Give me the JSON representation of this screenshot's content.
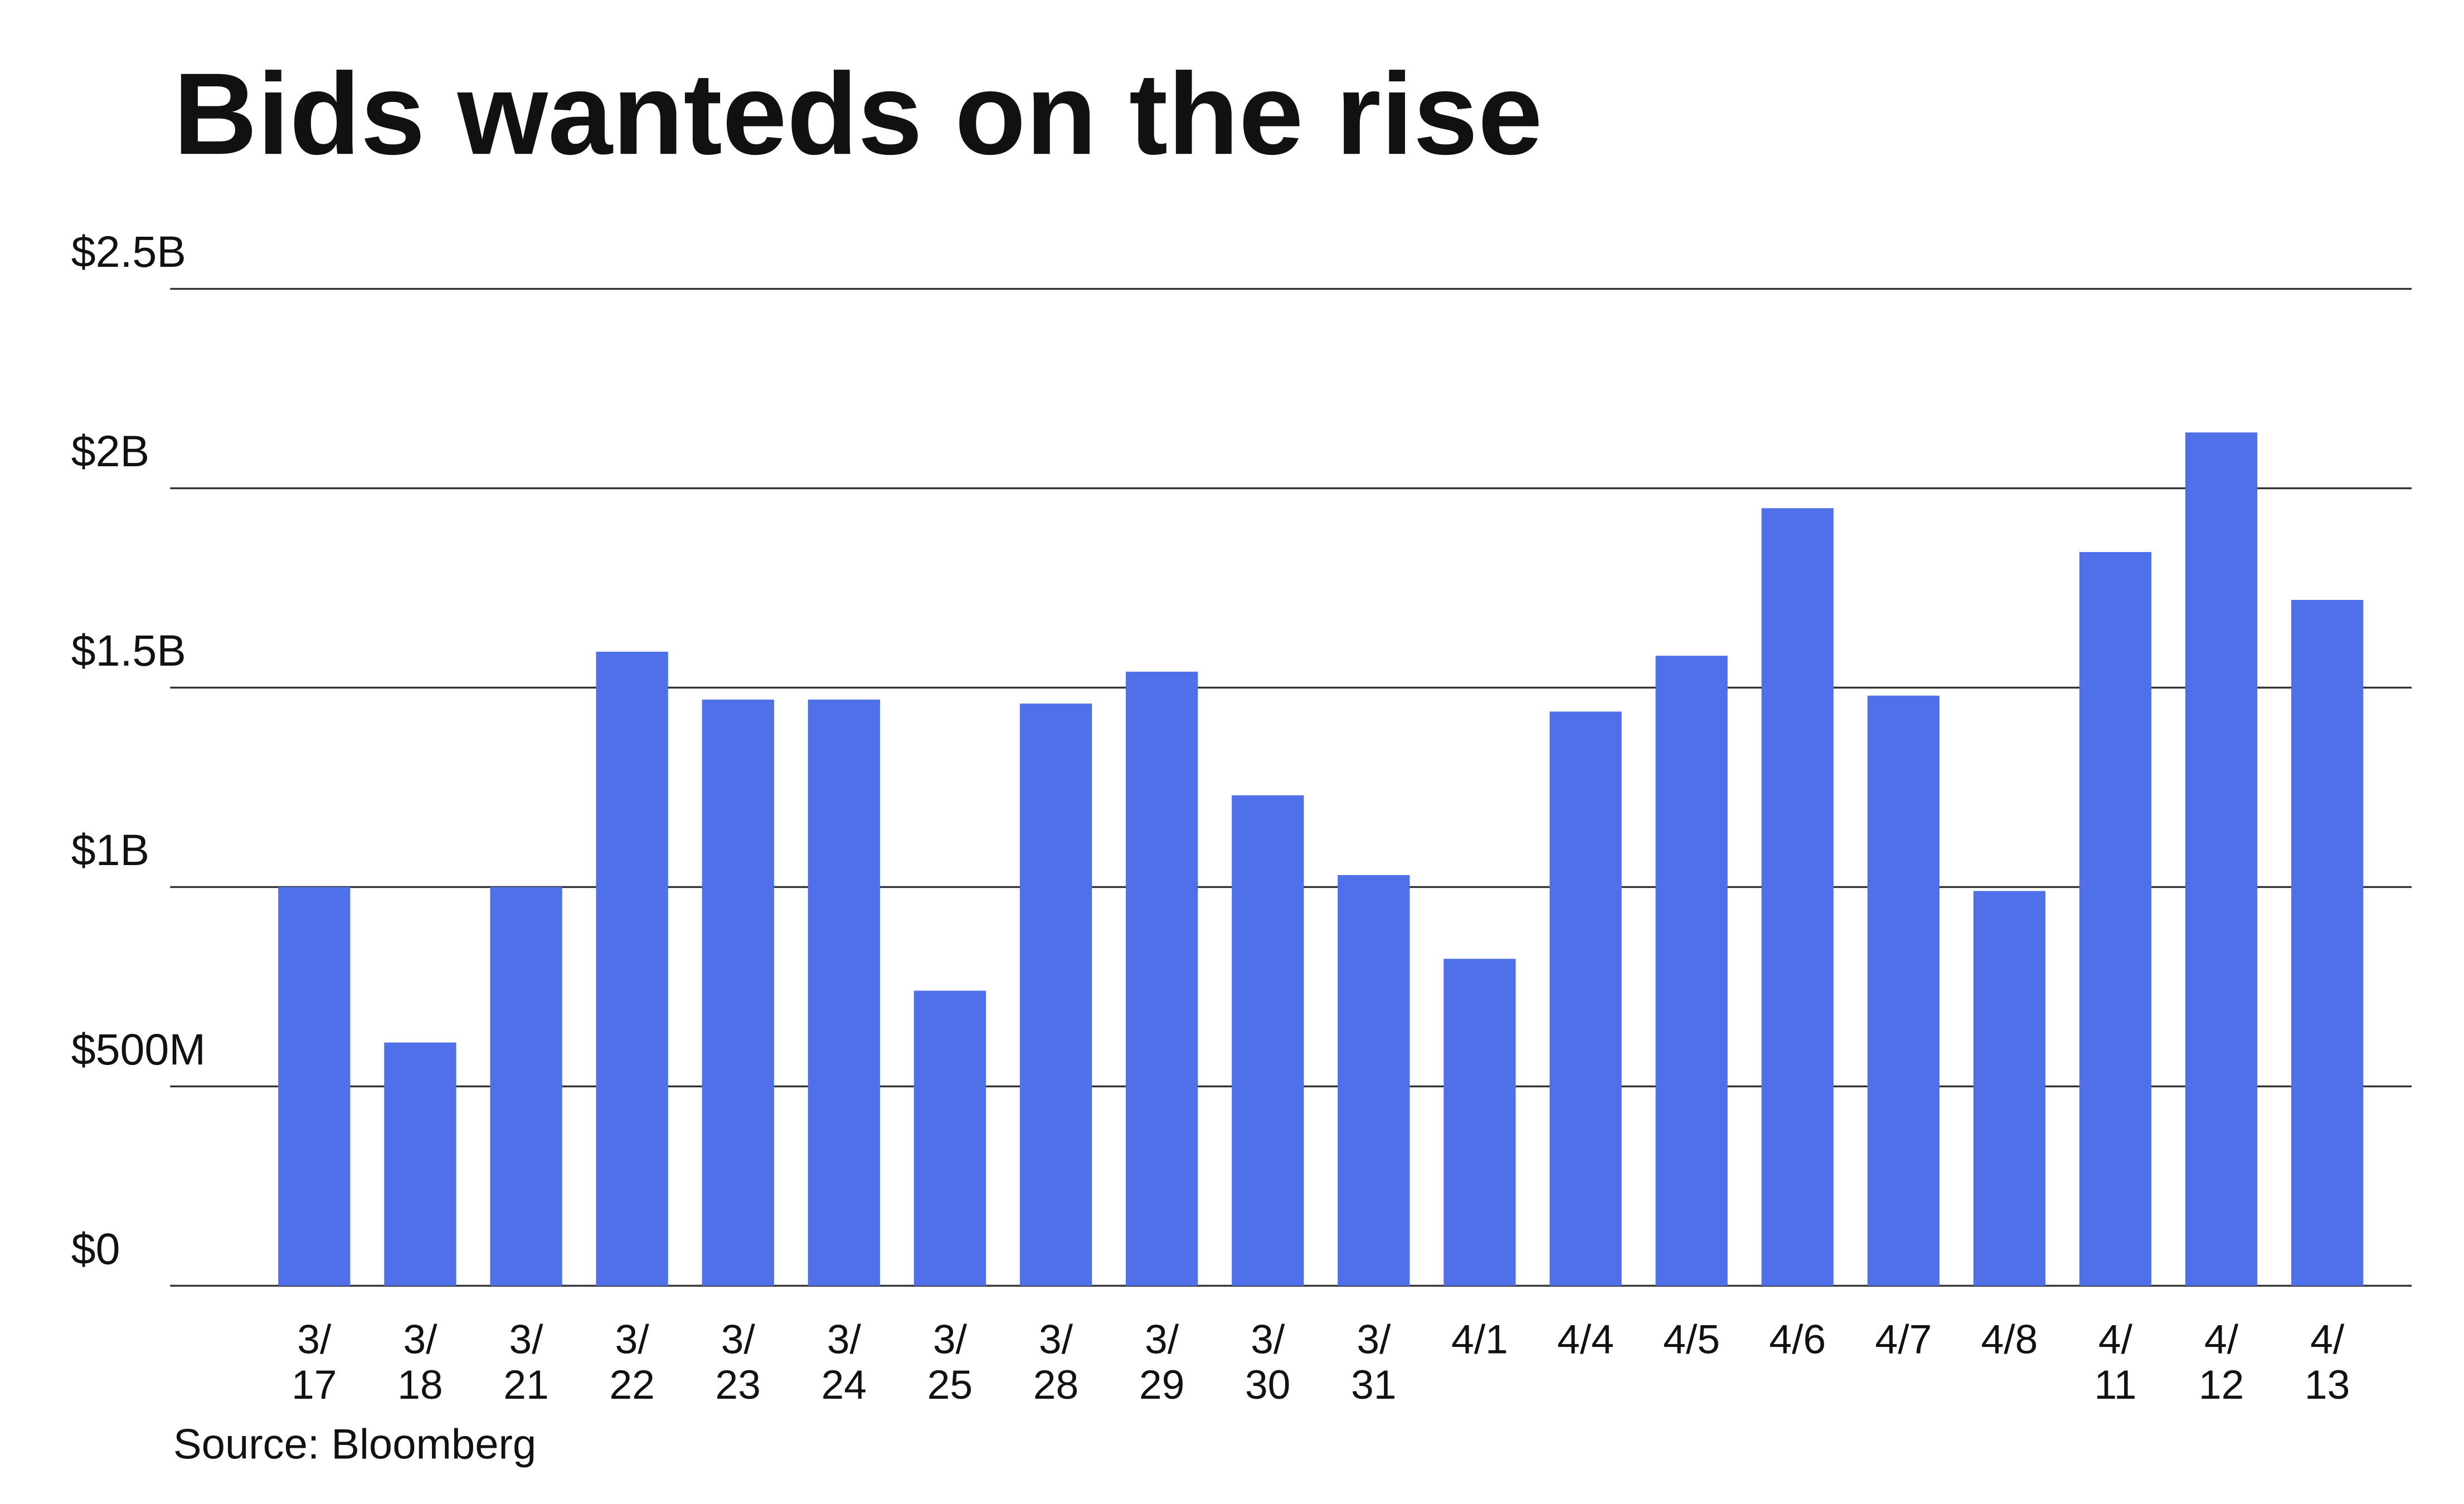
{
  "chart_data": {
    "type": "bar",
    "title": "Bids wanteds on the rise",
    "source": "Source: Bloomberg",
    "categories": [
      "3/17",
      "3/18",
      "3/21",
      "3/22",
      "3/23",
      "3/24",
      "3/25",
      "3/28",
      "3/29",
      "3/30",
      "3/31",
      "4/1",
      "4/4",
      "4/5",
      "4/6",
      "4/7",
      "4/8",
      "4/11",
      "4/12",
      "4/13"
    ],
    "values": [
      1.0,
      0.61,
      1.0,
      1.59,
      1.47,
      1.47,
      0.74,
      1.46,
      1.54,
      1.23,
      1.03,
      0.82,
      1.44,
      1.58,
      1.95,
      1.48,
      0.99,
      1.84,
      2.14,
      1.72
    ],
    "color": "#5070ea",
    "ylim": [
      0,
      2.5
    ],
    "yticks": [
      {
        "value": 0,
        "label": "$0"
      },
      {
        "value": 0.5,
        "label": "$500M"
      },
      {
        "value": 1,
        "label": "$1B"
      },
      {
        "value": 1.5,
        "label": "$1.5B"
      },
      {
        "value": 2,
        "label": "$2B"
      },
      {
        "value": 2.5,
        "label": "$2.5B"
      }
    ],
    "grid": true
  }
}
